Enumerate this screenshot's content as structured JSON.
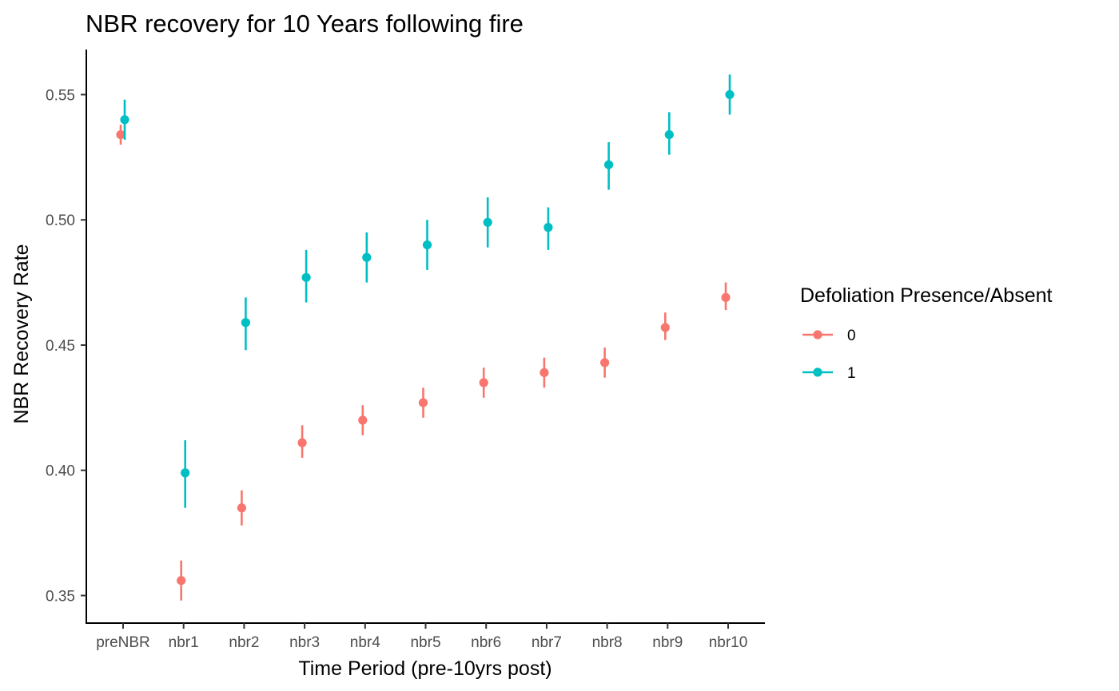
{
  "chart_data": {
    "type": "scatter",
    "title": "NBR recovery for 10 Years following fire",
    "xlabel": "Time Period (pre-10yrs post)",
    "ylabel": "NBR Recovery Rate",
    "categories": [
      "preNBR",
      "nbr1",
      "nbr2",
      "nbr3",
      "nbr4",
      "nbr5",
      "nbr6",
      "nbr7",
      "nbr8",
      "nbr9",
      "nbr10"
    ],
    "ylim": [
      0.339,
      0.568
    ],
    "yticks": [
      0.35,
      0.4,
      0.45,
      0.5,
      0.55
    ],
    "ytick_labels": [
      "0.35",
      "0.40",
      "0.45",
      "0.50",
      "0.55"
    ],
    "grid": false,
    "error_bars": true,
    "legend": {
      "title": "Defoliation Presence/Absent",
      "position": "right"
    },
    "series": [
      {
        "name": "0",
        "color": "#F8766D",
        "values": [
          0.534,
          0.356,
          0.385,
          0.411,
          0.42,
          0.427,
          0.435,
          0.439,
          0.443,
          0.457,
          0.469
        ],
        "lower": [
          0.53,
          0.348,
          0.378,
          0.405,
          0.414,
          0.421,
          0.429,
          0.433,
          0.437,
          0.452,
          0.464
        ],
        "upper": [
          0.538,
          0.364,
          0.392,
          0.418,
          0.426,
          0.433,
          0.441,
          0.445,
          0.449,
          0.463,
          0.475
        ]
      },
      {
        "name": "1",
        "color": "#00BFC4",
        "values": [
          0.54,
          0.399,
          0.459,
          0.477,
          0.485,
          0.49,
          0.499,
          0.497,
          0.522,
          0.534,
          0.55
        ],
        "lower": [
          0.532,
          0.385,
          0.448,
          0.467,
          0.475,
          0.48,
          0.489,
          0.488,
          0.512,
          0.526,
          0.542
        ],
        "upper": [
          0.548,
          0.412,
          0.469,
          0.488,
          0.495,
          0.5,
          0.509,
          0.505,
          0.531,
          0.543,
          0.558
        ]
      }
    ]
  }
}
